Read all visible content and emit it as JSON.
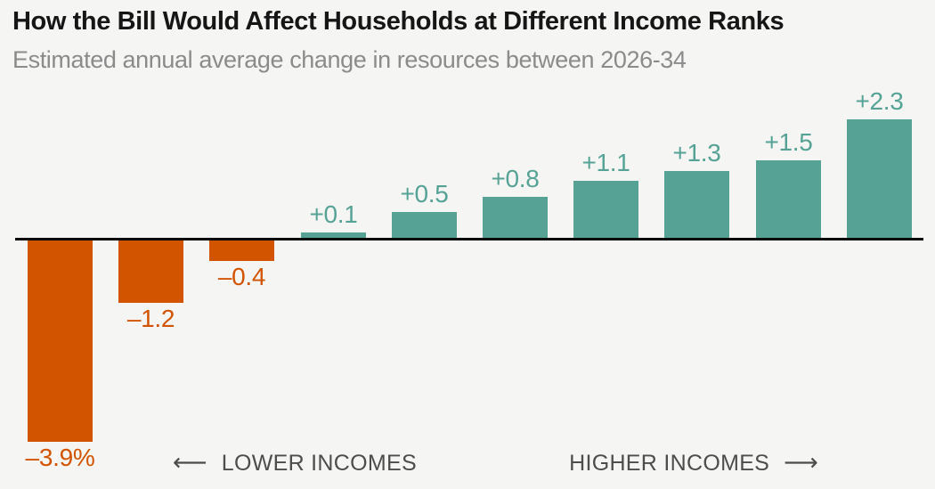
{
  "header": {
    "title": "How the Bill Would Affect Households at Different Income Ranks",
    "subtitle": "Estimated annual average change in resources between 2026-34"
  },
  "chart_data": {
    "type": "bar",
    "title": "How the Bill Would Affect Households at Different Income Ranks",
    "subtitle": "Estimated annual average change in resources between 2026-34",
    "unit": "percent change in resources",
    "values": [
      -3.9,
      -1.2,
      -0.4,
      0.1,
      0.5,
      0.8,
      1.1,
      1.3,
      1.5,
      2.3
    ],
    "labels": [
      "–3.9%",
      "–1.2",
      "–0.4",
      "+0.1",
      "+0.5",
      "+0.8",
      "+1.1",
      "+1.3",
      "+1.5",
      "+2.3"
    ],
    "colors": {
      "negative": "#d25400",
      "positive": "#56a396",
      "baseline": "#0a0a0a",
      "background": "#f5f5f4"
    },
    "x_axis": {
      "tick_labels_visible": false,
      "left_annotation": "LOWER INCOMES",
      "right_annotation": "HIGHER INCOMES"
    },
    "baseline_value": 0,
    "grid": false,
    "legend": false
  },
  "annotations": {
    "left_arrow": "⟵",
    "lower_label": "LOWER INCOMES",
    "higher_label": "HIGHER INCOMES",
    "right_arrow": "⟶"
  }
}
